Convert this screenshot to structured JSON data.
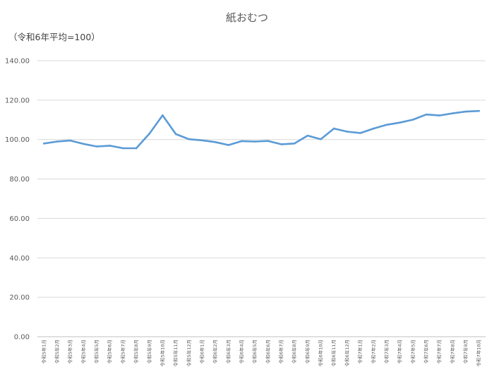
{
  "chart_data": {
    "type": "line",
    "title": "紙おむつ",
    "subtitle": "（令和6年平均=100）",
    "categories": [
      "令和5年1月",
      "令和5年2月",
      "令和5年3月",
      "令和5年4月",
      "令和5年5月",
      "令和5年6月",
      "令和5年7月",
      "令和5年8月",
      "令和5年9月",
      "令和5年10月",
      "令和5年11月",
      "令和5年12月",
      "令和6年1月",
      "令和6年2月",
      "令和6年3月",
      "令和6年4月",
      "令和6年5月",
      "令和6年6月",
      "令和6年7月",
      "令和6年8月",
      "令和6年9月",
      "令和6年10月",
      "令和6年11月",
      "令和6年12月",
      "令和7年1月",
      "令和7年2月",
      "令和7年3月",
      "令和7年4月",
      "令和7年5月",
      "令和7年6月",
      "令和7年7月",
      "令和7年8月",
      "令和7年9月",
      "令和7年10月"
    ],
    "series": [
      {
        "color": "#5b9bd5",
        "values": [
          98.0,
          99.0,
          99.5,
          97.8,
          96.5,
          96.9,
          95.6,
          95.6,
          103.0,
          112.3,
          102.8,
          100.2,
          99.6,
          98.7,
          97.2,
          99.2,
          99.0,
          99.3,
          97.6,
          98.0,
          102.0,
          100.2,
          105.6,
          104.0,
          103.3,
          105.6,
          107.5,
          108.6,
          110.1,
          112.7,
          112.2,
          113.3,
          114.2,
          114.5
        ]
      }
    ],
    "ylim": [
      0,
      140
    ],
    "yticks": [
      "0.00",
      "20.00",
      "40.00",
      "60.00",
      "80.00",
      "100.00",
      "120.00",
      "140.00"
    ],
    "ytick_values": [
      0,
      20,
      40,
      60,
      80,
      100,
      120,
      140
    ],
    "grid": true,
    "legend": "none"
  }
}
